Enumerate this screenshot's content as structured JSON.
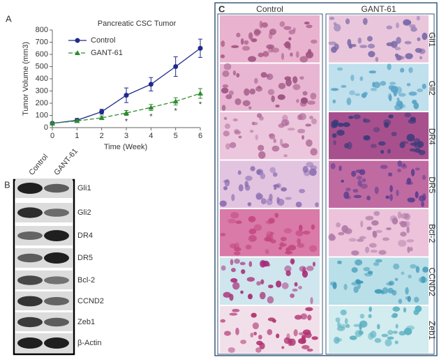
{
  "chart_data": {
    "type": "line",
    "title": "Pancreatic CSC Tumor",
    "x_label": "Time (Week)",
    "y_label": "Tumor Volume (mm3)",
    "x": [
      0,
      1,
      2,
      3,
      4,
      5,
      6
    ],
    "xlim": [
      0,
      6
    ],
    "ylim": [
      0,
      800
    ],
    "xticks": [
      0,
      1,
      2,
      3,
      4,
      5,
      6
    ],
    "yticks": [
      0,
      100,
      200,
      300,
      400,
      500,
      600,
      700,
      800
    ],
    "legend": "upper left",
    "series": [
      {
        "name": "Control",
        "color": "#1f2a8c",
        "marker": "circle",
        "dashed": false,
        "values": [
          35,
          60,
          130,
          265,
          355,
          500,
          650
        ],
        "errors": [
          5,
          15,
          20,
          60,
          55,
          80,
          75
        ]
      },
      {
        "name": "GANT-61",
        "color": "#2e8b2e",
        "marker": "triangle",
        "dashed": true,
        "values": [
          35,
          55,
          80,
          120,
          165,
          215,
          280
        ],
        "errors": [
          5,
          10,
          15,
          20,
          25,
          30,
          40
        ]
      }
    ],
    "significance": {
      "label": "*",
      "x": [
        3,
        4,
        5,
        6
      ]
    }
  },
  "panel_labels": [
    "A",
    "B",
    "C"
  ],
  "blot": {
    "lanes": [
      "Control",
      "GANT-61"
    ],
    "proteins": [
      "Gli1",
      "Gli2",
      "DR4",
      "DR5",
      "Bcl-2",
      "CCND2",
      "Zeb1",
      "β-Actin"
    ]
  },
  "ihc": {
    "columns": [
      "Control",
      "GANT-61"
    ],
    "markers": [
      "Gli1",
      "Gli2",
      "DR4",
      "DR5",
      "Bcl-2",
      "CCND2",
      "Zeb1"
    ]
  }
}
